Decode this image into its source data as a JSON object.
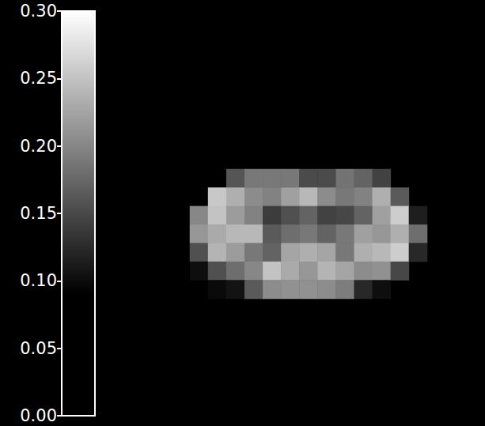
{
  "chart_data": {
    "type": "heatmap",
    "tick_labels": false,
    "cells": [
      [
        null,
        null,
        0.16,
        0.189,
        0.189,
        0.189,
        0.152,
        0.152,
        0.185,
        0.172,
        0.144,
        null,
        null
      ],
      [
        null,
        0.255,
        0.234,
        0.205,
        0.197,
        0.222,
        0.242,
        0.205,
        0.189,
        0.197,
        0.234,
        0.164,
        null
      ],
      [
        0.201,
        0.251,
        0.218,
        0.197,
        0.139,
        0.156,
        0.172,
        0.144,
        0.148,
        0.172,
        0.222,
        0.259,
        0.115
      ],
      [
        0.214,
        0.23,
        0.242,
        0.242,
        0.164,
        0.181,
        0.189,
        0.172,
        0.189,
        0.222,
        0.214,
        0.234,
        0.181
      ],
      [
        0.156,
        0.238,
        0.218,
        0.189,
        0.172,
        0.226,
        0.234,
        0.226,
        0.189,
        0.234,
        0.242,
        0.259,
        0.123
      ],
      [
        0.102,
        0.156,
        0.181,
        0.201,
        0.251,
        0.23,
        0.214,
        0.238,
        0.226,
        0.205,
        0.209,
        0.148,
        null
      ],
      [
        null,
        0.098,
        0.106,
        0.164,
        0.205,
        0.209,
        0.209,
        0.205,
        0.193,
        0.123,
        0.102,
        null,
        null
      ]
    ],
    "colorbar": {
      "range": [
        0,
        0.3
      ],
      "ticks": [
        {
          "value": 0,
          "label": "0.00"
        },
        0.05,
        {
          "value": 0.1,
          "label": "0.10"
        },
        0.15,
        {
          "value": 0.2,
          "label": "0.20"
        },
        0.25,
        {
          "value": 0.3,
          "label": "0.30"
        }
      ]
    }
  }
}
